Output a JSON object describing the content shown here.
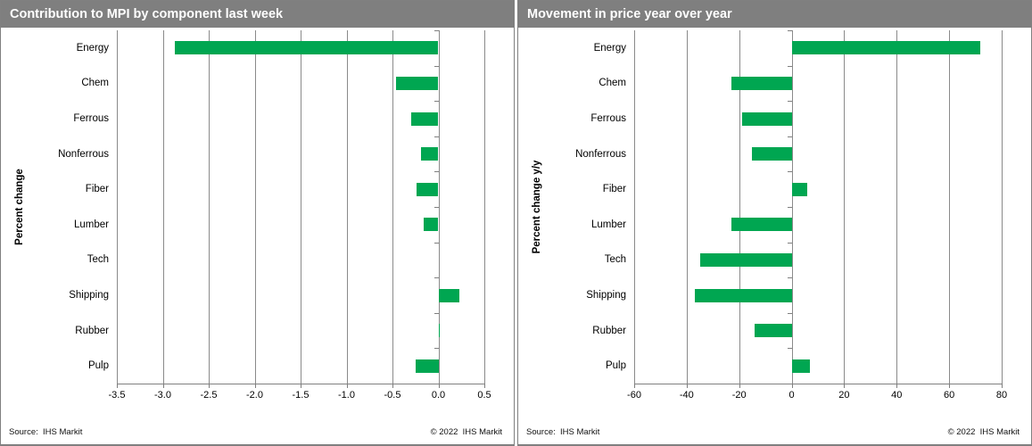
{
  "footer": {
    "source": "Source:  IHS Markit",
    "copyright": "© 2022  IHS Markit"
  },
  "colors": {
    "bar_green": "#00A651",
    "title_bar_bg": "#7F7F7F",
    "title_text": "#FFFFFF",
    "gridline": "#8A8A8A",
    "panel_border": "#808080"
  },
  "chart_data": [
    {
      "type": "bar",
      "orientation": "horizontal",
      "title": "Contribution to MPI by component last week",
      "ylabel": "Percent change",
      "xlabel": "",
      "categories": [
        "Energy",
        "Chem",
        "Ferrous",
        "Nonferrous",
        "Fiber",
        "Lumber",
        "Tech",
        "Shipping",
        "Rubber",
        "Pulp"
      ],
      "values": [
        -2.87,
        -0.46,
        -0.3,
        -0.19,
        -0.24,
        -0.16,
        0,
        0.23,
        0.01,
        -0.25
      ],
      "xlim": [
        -3.5,
        0.5
      ],
      "xtick_labels": [
        "-3.5",
        "-3.0",
        "-2.5",
        "-2.0",
        "-1.5",
        "-1.0",
        "-0.5",
        "0.0",
        "0.5"
      ],
      "bar_color": "#00A651",
      "grid": true,
      "legend": "none"
    },
    {
      "type": "bar",
      "orientation": "horizontal",
      "title": "Movement in price year over year",
      "ylabel": "Percent change y/y",
      "xlabel": "",
      "categories": [
        "Energy",
        "Chem",
        "Ferrous",
        "Nonferrous",
        "Fiber",
        "Lumber",
        "Tech",
        "Shipping",
        "Rubber",
        "Pulp"
      ],
      "values": [
        72,
        -23,
        -19,
        -15,
        6,
        -23,
        -35,
        -37,
        -14,
        7
      ],
      "xlim": [
        -60,
        80
      ],
      "xtick_labels": [
        "-60",
        "-40",
        "-20",
        "0",
        "20",
        "40",
        "60",
        "80"
      ],
      "bar_color": "#00A651",
      "grid": true,
      "legend": "none"
    }
  ]
}
